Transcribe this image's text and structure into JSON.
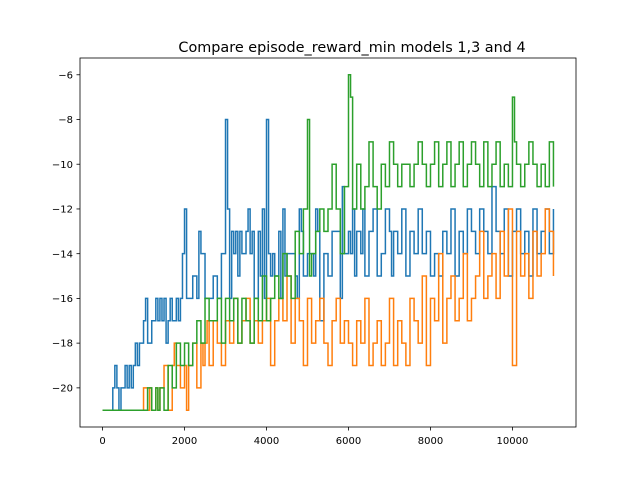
{
  "chart_data": {
    "type": "line",
    "title": "Compare episode_reward_min models 1,3 and 4",
    "xlabel": "",
    "ylabel": "",
    "xlim": [
      -550,
      11550
    ],
    "ylim": [
      -21.75,
      -5.25
    ],
    "x_ticks": [
      0,
      2000,
      4000,
      6000,
      8000,
      10000
    ],
    "y_ticks": [
      -20,
      -18,
      -16,
      -14,
      -12,
      -10,
      -8,
      -6
    ],
    "grid": false,
    "legend": "none",
    "series": [
      {
        "color": "#1f77b4",
        "x": [
          0,
          200,
          250,
          300,
          350,
          400,
          450,
          500,
          550,
          600,
          650,
          700,
          750,
          800,
          850,
          900,
          1000,
          1050,
          1100,
          1150,
          1200,
          1300,
          1350,
          1400,
          1450,
          1500,
          1550,
          1600,
          1650,
          1700,
          1800,
          1850,
          1900,
          1950,
          2000,
          2050,
          2100,
          2200,
          2300,
          2350,
          2400,
          2500,
          2600,
          2700,
          2800,
          2900,
          3000,
          3050,
          3100,
          3150,
          3200,
          3250,
          3300,
          3350,
          3400,
          3500,
          3550,
          3600,
          3650,
          3700,
          3800,
          3850,
          3900,
          3950,
          4000,
          4050,
          4100,
          4150,
          4200,
          4300,
          4350,
          4400,
          4450,
          4500,
          4600,
          4700,
          4750,
          4800,
          4850,
          4900,
          5000,
          5100,
          5150,
          5200,
          5250,
          5300,
          5400,
          5500,
          5600,
          5700,
          5800,
          5850,
          5900,
          6000,
          6050,
          6100,
          6150,
          6200,
          6300,
          6350,
          6400,
          6500,
          6600,
          6700,
          6800,
          6900,
          7000,
          7050,
          7100,
          7200,
          7300,
          7400,
          7500,
          7600,
          7700,
          7800,
          7900,
          8000,
          8100,
          8200,
          8300,
          8400,
          8500,
          8600,
          8700,
          8800,
          8900,
          9000,
          9100,
          9200,
          9300,
          9400,
          9500,
          9600,
          9700,
          9800,
          9900,
          10000,
          10100,
          10200,
          10300,
          10400,
          10500,
          10600,
          10700,
          10800,
          10900,
          11000
        ],
        "values": [
          -21,
          -21,
          -20,
          -19,
          -20,
          -21,
          -20,
          -20,
          -19,
          -20,
          -19,
          -20,
          -19,
          -18,
          -19,
          -18,
          -17,
          -16,
          -18,
          -18,
          -17,
          -16,
          -17,
          -16,
          -17,
          -16,
          -18,
          -17,
          -16,
          -17,
          -16,
          -17,
          -16,
          -14,
          -12,
          -16,
          -16,
          -15,
          -16,
          -13,
          -14,
          -16,
          -16,
          -15,
          -16,
          -14,
          -8,
          -12,
          -16,
          -13,
          -14,
          -13,
          -15,
          -13,
          -14,
          -13,
          -12,
          -14,
          -13,
          -16,
          -13,
          -15,
          -12,
          -16,
          -8,
          -14,
          -15,
          -14,
          -15,
          -13,
          -16,
          -12,
          -15,
          -14,
          -14,
          -15,
          -16,
          -12,
          -13,
          -15,
          -14,
          -14,
          -15,
          -12,
          -13,
          -17,
          -14,
          -15,
          -13,
          -13,
          -16,
          -11,
          -14,
          -13,
          -14,
          -12,
          -15,
          -13,
          -14,
          -12,
          -15,
          -13,
          -12,
          -15,
          -14,
          -12,
          -13,
          -15,
          -13,
          -14,
          -12,
          -15,
          -13,
          -14,
          -12,
          -14,
          -13,
          -15,
          -14,
          -15,
          -13,
          -14,
          -12,
          -15,
          -13,
          -14,
          -12,
          -13,
          -14,
          -12,
          -13,
          -14,
          -11,
          -13,
          -14,
          -12,
          -15,
          -13,
          -12,
          -14,
          -13,
          -15,
          -12,
          -14,
          -13,
          -12,
          -14,
          -12
        ]
      },
      {
        "color": "#ff7f0e",
        "x": [
          0,
          1000,
          1100,
          1150,
          1200,
          1300,
          1350,
          1400,
          1500,
          1600,
          1700,
          1750,
          1800,
          1900,
          2000,
          2050,
          2100,
          2200,
          2300,
          2400,
          2450,
          2500,
          2550,
          2600,
          2700,
          2800,
          2900,
          3000,
          3100,
          3200,
          3300,
          3400,
          3500,
          3600,
          3700,
          3800,
          3900,
          4000,
          4100,
          4200,
          4300,
          4400,
          4500,
          4600,
          4700,
          4800,
          4900,
          5000,
          5100,
          5200,
          5300,
          5400,
          5500,
          5600,
          5700,
          5800,
          5900,
          6000,
          6100,
          6200,
          6300,
          6400,
          6500,
          6600,
          6700,
          6800,
          6900,
          7000,
          7100,
          7200,
          7300,
          7400,
          7500,
          7600,
          7700,
          7800,
          7900,
          8000,
          8100,
          8200,
          8300,
          8400,
          8500,
          8600,
          8700,
          8800,
          8900,
          9000,
          9100,
          9200,
          9300,
          9400,
          9500,
          9600,
          9700,
          9800,
          9900,
          10000,
          10100,
          10200,
          10300,
          10400,
          10500,
          10600,
          10700,
          10800,
          10900,
          11000
        ],
        "values": [
          -21,
          -20,
          -21,
          -20,
          -21,
          -20,
          -21,
          -20,
          -19,
          -21,
          -19,
          -18,
          -19,
          -20,
          -19,
          -21,
          -19,
          -18,
          -20,
          -18,
          -19,
          -18,
          -17,
          -19,
          -17,
          -18,
          -19,
          -17,
          -18,
          -16,
          -18,
          -17,
          -16,
          -18,
          -17,
          -18,
          -17,
          -16,
          -19,
          -17,
          -16,
          -17,
          -15,
          -18,
          -16,
          -17,
          -19,
          -16,
          -18,
          -17,
          -16,
          -18,
          -19,
          -17,
          -16,
          -18,
          -17,
          -18,
          -19,
          -17,
          -18,
          -16,
          -19,
          -18,
          -17,
          -19,
          -18,
          -16,
          -19,
          -17,
          -18,
          -19,
          -16,
          -17,
          -18,
          -15,
          -19,
          -16,
          -17,
          -14,
          -18,
          -16,
          -15,
          -17,
          -16,
          -14,
          -17,
          -16,
          -15,
          -13,
          -16,
          -15,
          -14,
          -16,
          -13,
          -15,
          -12,
          -19,
          -13,
          -15,
          -14,
          -16,
          -13,
          -15,
          -14,
          -12,
          -13,
          -15
        ]
      },
      {
        "color": "#2ca02c",
        "x": [
          0,
          1000,
          1100,
          1200,
          1300,
          1350,
          1400,
          1500,
          1600,
          1700,
          1800,
          1900,
          2000,
          2100,
          2200,
          2300,
          2400,
          2500,
          2600,
          2700,
          2800,
          2900,
          3000,
          3100,
          3200,
          3300,
          3400,
          3500,
          3600,
          3700,
          3800,
          3900,
          4000,
          4100,
          4200,
          4300,
          4400,
          4500,
          4600,
          4700,
          4800,
          4900,
          5000,
          5050,
          5100,
          5200,
          5300,
          5400,
          5500,
          5600,
          5700,
          5800,
          5900,
          6000,
          6050,
          6100,
          6200,
          6300,
          6400,
          6500,
          6600,
          6700,
          6800,
          6900,
          7000,
          7100,
          7200,
          7300,
          7400,
          7500,
          7600,
          7700,
          7800,
          7900,
          8000,
          8100,
          8200,
          8300,
          8400,
          8500,
          8600,
          8700,
          8800,
          8900,
          9000,
          9100,
          9200,
          9300,
          9400,
          9500,
          9600,
          9700,
          9800,
          9900,
          10000,
          10050,
          10100,
          10200,
          10300,
          10400,
          10500,
          10600,
          10700,
          10800,
          10900,
          11000
        ],
        "values": [
          -21,
          -21,
          -20,
          -21,
          -20,
          -21,
          -20,
          -21,
          -19,
          -20,
          -18,
          -19,
          -18,
          -19,
          -18,
          -17,
          -18,
          -16,
          -17,
          -17,
          -16,
          -18,
          -16,
          -17,
          -16,
          -18,
          -16,
          -17,
          -18,
          -16,
          -17,
          -15,
          -17,
          -16,
          -15,
          -16,
          -14,
          -15,
          -16,
          -13,
          -14,
          -12,
          -8,
          -15,
          -14,
          -13,
          -12,
          -13,
          -12,
          -10,
          -12,
          -14,
          -11,
          -6,
          -7,
          -12,
          -10,
          -12,
          -11,
          -9,
          -11,
          -12,
          -10,
          -11,
          -9,
          -10,
          -11,
          -10,
          -10,
          -11,
          -10,
          -9,
          -10,
          -11,
          -10,
          -9,
          -11,
          -10,
          -9,
          -11,
          -10,
          -9,
          -11,
          -10,
          -9,
          -10,
          -11,
          -9,
          -11,
          -10,
          -9,
          -11,
          -10,
          -11,
          -7,
          -9,
          -10,
          -11,
          -10,
          -9,
          -10,
          -11,
          -10,
          -11,
          -9,
          -11
        ]
      }
    ]
  }
}
